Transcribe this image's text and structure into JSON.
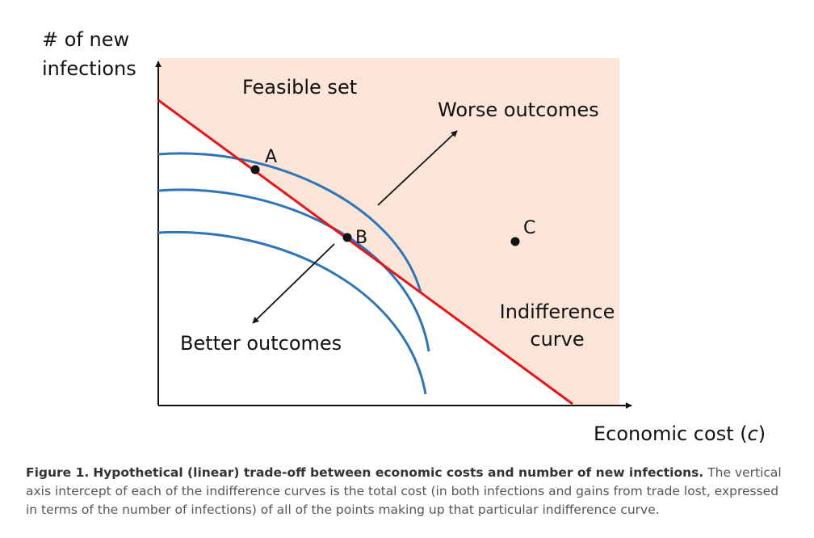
{
  "diagram": {
    "y_axis_label": [
      "# of new",
      "infections"
    ],
    "x_axis_label_prefix": "Economic cost (",
    "x_axis_label_var": "c",
    "x_axis_label_suffix": ")",
    "feasible_set_label": "Feasible set",
    "worse_label": "Worse outcomes",
    "better_label": "Better outcomes",
    "indifference_label": [
      "Indifference",
      "curve"
    ],
    "points": {
      "a": "A",
      "b": "B",
      "c": "C"
    },
    "colors": {
      "feasible_fill": "#fbe4d8",
      "line": "#e8141b",
      "curves": "#2e75b6",
      "axes": "#111111"
    }
  },
  "caption": {
    "figure_label": "Figure 1.",
    "bold_text": "Hypothetical (linear) trade-off between economic costs and number of new infections.",
    "body_text": "The vertical axis intercept of each of the indifference curves is the total cost (in both infections and gains from trade lost, expressed in terms of the number of infections) of all of the points making up that particular indifference curve."
  }
}
